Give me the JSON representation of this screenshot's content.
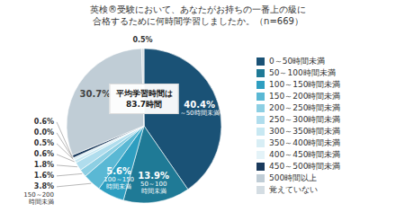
{
  "chart_data": {
    "type": "pie",
    "title": "英検®受験において、あなたがお持ちの一番上の級に\n合格するために何時間学習しましたか。（n=669）",
    "categories": [
      "0～50時間未満",
      "50～100時間未満",
      "100～150時間未満",
      "150～200時間未満",
      "200～250時間未満",
      "250～300時間未満",
      "300～350時間未満",
      "350～400時間未満",
      "400～450時間未満",
      "450～500時間未満",
      "500時間以上",
      "覚えていない"
    ],
    "values": [
      40.4,
      13.9,
      5.6,
      3.8,
      1.6,
      1.8,
      0.6,
      0.5,
      0.01,
      0.6,
      30.7,
      0.5
    ],
    "value_labels": [
      "40.4%",
      "13.9%",
      "5.6%",
      "3.8%",
      "1.6%",
      "1.8%",
      "0.6%",
      "0.5%",
      "0.0%",
      "0.6%",
      "30.7%",
      "0.5%"
    ],
    "colors": [
      "#1a5276",
      "#1f7a96",
      "#2e9ec0",
      "#5ab8d4",
      "#8dcfe3",
      "#b0dded",
      "#c8e8f2",
      "#d8eef5",
      "#e4f3f8",
      "#1a3a5c",
      "#c0cdd6",
      "#d4dde3"
    ],
    "data_labels": true,
    "legend": "right",
    "annotations": [
      {
        "text": "平均学習時間は\n83.7時間"
      },
      {
        "text": "～50時間未満",
        "category": "0～50時間未満"
      },
      {
        "text": "50～100\n時間未満",
        "category": "50～100時間未満"
      },
      {
        "text": "100～150\n時間未満",
        "category": "100～150時間未満"
      },
      {
        "text": "150～200\n時間未満",
        "category": "150～200時間未満"
      }
    ]
  }
}
